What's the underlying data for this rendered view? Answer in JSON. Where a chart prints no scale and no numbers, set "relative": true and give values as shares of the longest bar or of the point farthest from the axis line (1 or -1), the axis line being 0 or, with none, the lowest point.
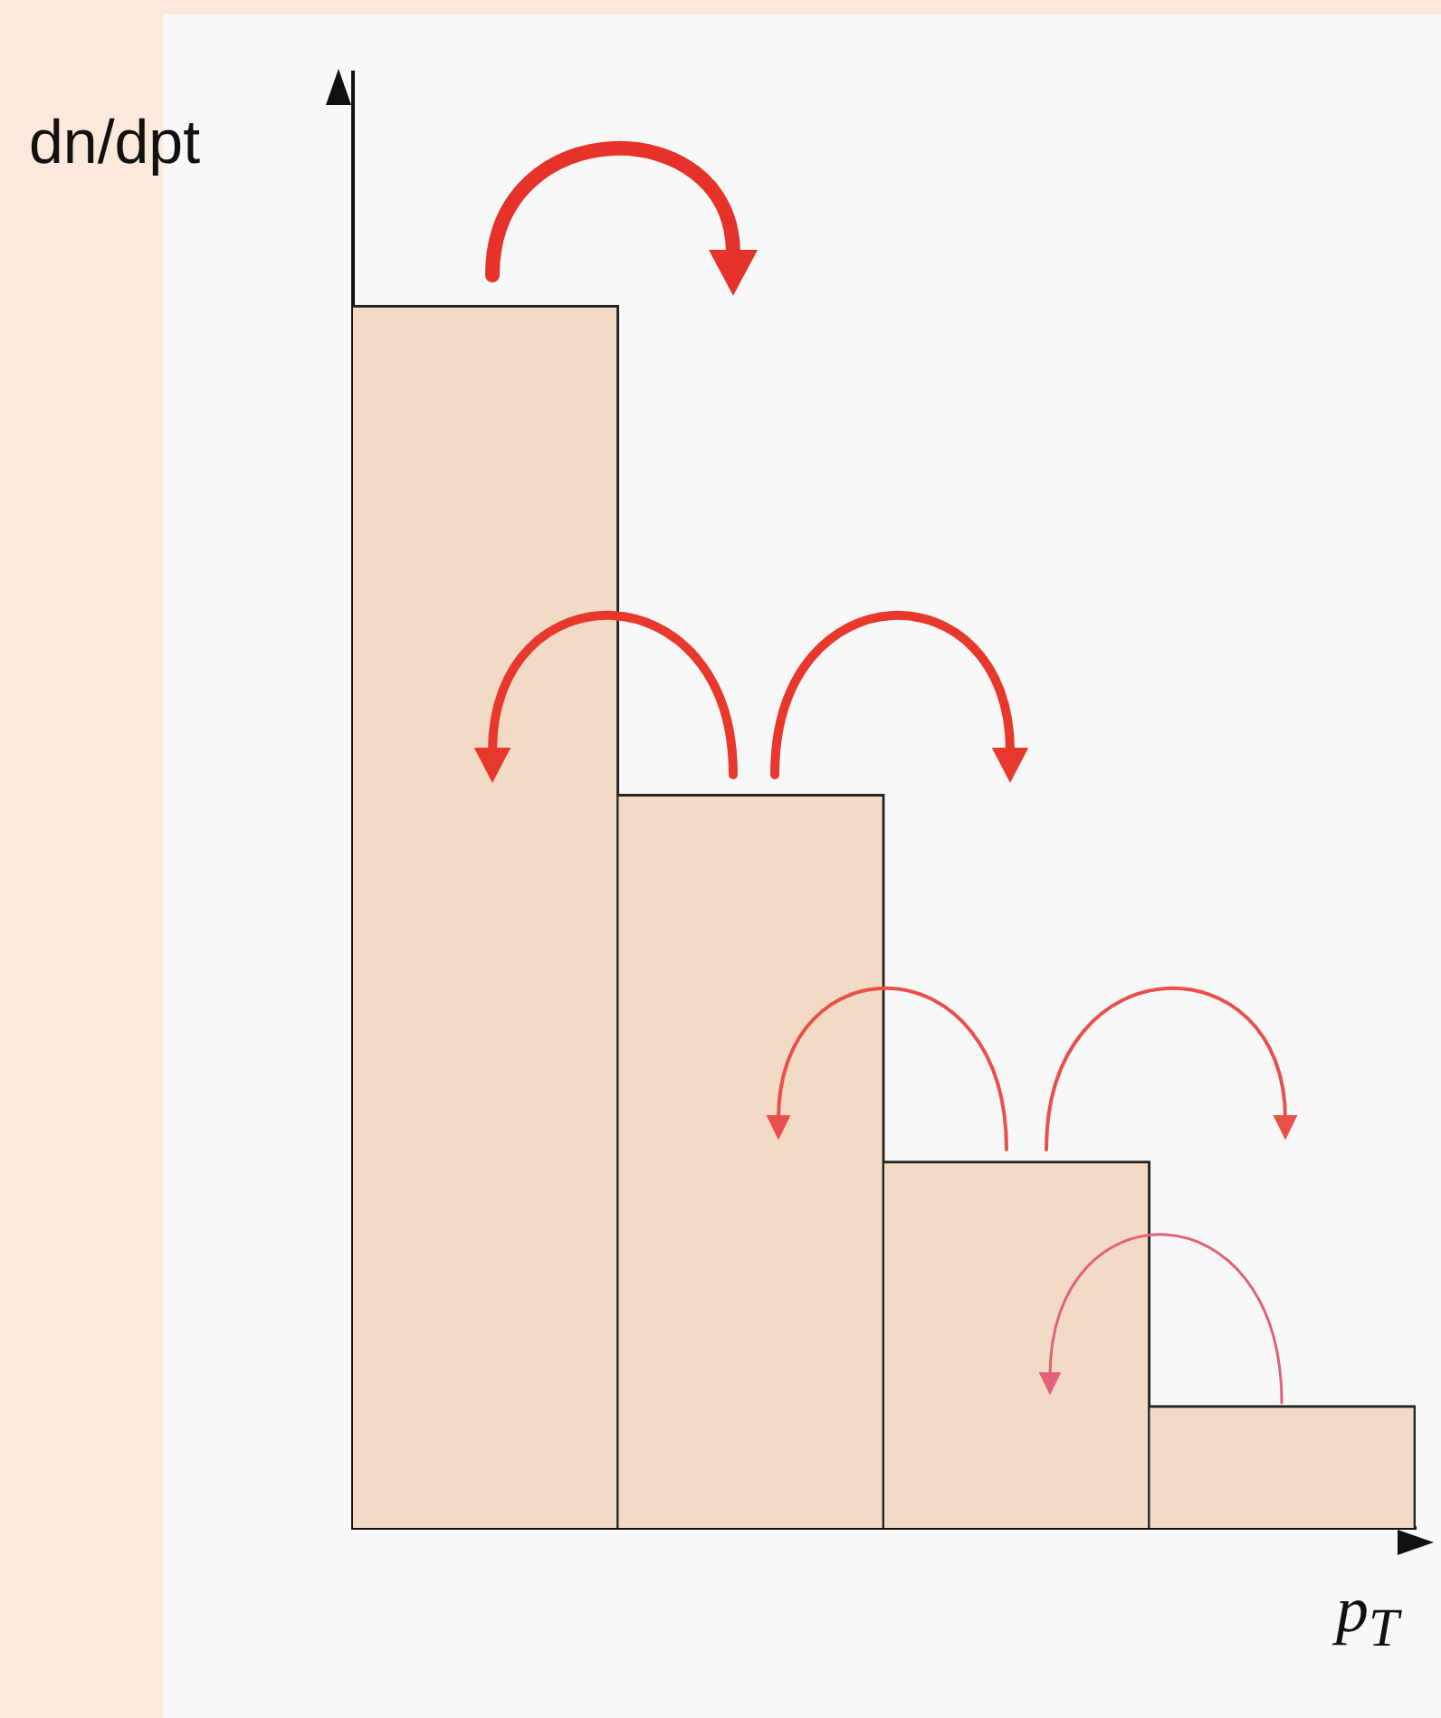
{
  "chart_data": {
    "type": "bar",
    "xlabel": "p$_{T}$",
    "ylabel": "dn/dpt",
    "categories": [
      null,
      null,
      null,
      null
    ],
    "values": [
      1,
      0.6,
      0.3,
      0.1
    ],
    "color": "#f2dac5",
    "relative": true
  }
}
